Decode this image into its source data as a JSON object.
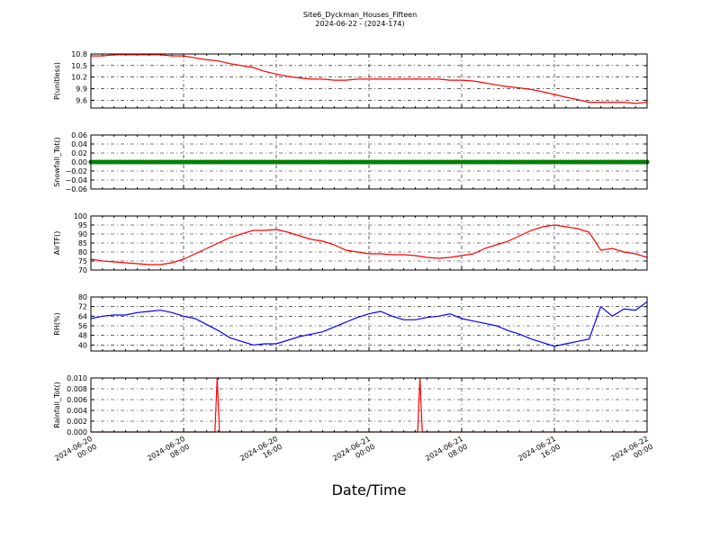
{
  "figure": {
    "title_line1": "Site6_Dyckman_Houses_Fifteen",
    "title_line2": "2024-06-22 - (2024-174)",
    "xlabel": "Date/Time"
  },
  "chart_data": [
    {
      "type": "line",
      "ylabel": "P(unitless)",
      "ylim": [
        9.4,
        10.8
      ],
      "yticks": [
        "10.8",
        "10.5",
        "10.2",
        "9.9",
        "9.6"
      ],
      "ytick_values": [
        10.8,
        10.5,
        10.2,
        9.9,
        9.6
      ],
      "color": "#ff0000",
      "grid": true,
      "x": [
        0,
        3,
        6,
        9,
        12,
        15,
        18,
        21,
        24,
        27,
        30,
        33,
        36,
        39,
        42,
        45,
        48
      ],
      "values": [
        10.75,
        10.78,
        10.78,
        10.75,
        10.65,
        10.5,
        10.25,
        10.15,
        10.12,
        10.15,
        10.15,
        10.15,
        10.12,
        10.05,
        9.9,
        9.75,
        9.55
      ],
      "series": [
        {
          "x": [
            0,
            1,
            2,
            3,
            4,
            5,
            6,
            7,
            8,
            9,
            10,
            11,
            12,
            13,
            14,
            15,
            16,
            17,
            18,
            19,
            20,
            21,
            22,
            23,
            24,
            25,
            26,
            27,
            28,
            29,
            30,
            31,
            32,
            33,
            34,
            35,
            36,
            37,
            38,
            39,
            40,
            41,
            42,
            43,
            44,
            45,
            46,
            47,
            48
          ],
          "y": [
            10.75,
            10.75,
            10.78,
            10.78,
            10.78,
            10.78,
            10.78,
            10.75,
            10.75,
            10.7,
            10.65,
            10.62,
            10.55,
            10.5,
            10.45,
            10.35,
            10.28,
            10.22,
            10.18,
            10.15,
            10.15,
            10.12,
            10.12,
            10.15,
            10.15,
            10.15,
            10.15,
            10.15,
            10.15,
            10.15,
            10.15,
            10.12,
            10.12,
            10.1,
            10.05,
            10.0,
            9.95,
            9.92,
            9.88,
            9.82,
            9.75,
            9.68,
            9.62,
            9.55,
            9.55,
            9.55,
            9.55,
            9.52,
            9.55
          ]
        }
      ]
    },
    {
      "type": "scatter",
      "ylabel": "Snowfall_Tot()",
      "ylim": [
        -0.06,
        0.06
      ],
      "yticks": [
        "0.06",
        "0.04",
        "0.02",
        "0.00",
        "−0.02",
        "−0.04",
        "−0.06"
      ],
      "ytick_values": [
        0.06,
        0.04,
        0.02,
        0.0,
        -0.02,
        -0.04,
        -0.06
      ],
      "color": "#008000",
      "grid": true,
      "x_range": [
        0,
        48
      ],
      "constant_value": 0.0,
      "series": []
    },
    {
      "type": "line",
      "ylabel": "AirTF()",
      "ylim": [
        70,
        100
      ],
      "yticks": [
        "100",
        "95",
        "90",
        "85",
        "80",
        "75",
        "70"
      ],
      "ytick_values": [
        100,
        95,
        90,
        85,
        80,
        75,
        70
      ],
      "color": "#ff0000",
      "grid": true,
      "series": [
        {
          "x": [
            0,
            1,
            2,
            3,
            4,
            5,
            6,
            7,
            8,
            9,
            10,
            11,
            12,
            13,
            14,
            15,
            16,
            17,
            18,
            19,
            20,
            21,
            22,
            23,
            24,
            25,
            26,
            27,
            28,
            29,
            30,
            31,
            32,
            33,
            34,
            35,
            36,
            37,
            38,
            39,
            40,
            41,
            42,
            43,
            44,
            45,
            46,
            47,
            48
          ],
          "y": [
            76,
            75,
            74.5,
            74,
            73.5,
            73,
            73,
            74,
            76,
            79,
            82,
            85,
            88,
            90,
            92,
            92,
            92.5,
            91,
            89,
            87,
            86,
            84,
            81,
            80,
            79,
            79,
            78.5,
            78.5,
            78,
            77,
            76.5,
            77,
            78,
            79,
            82,
            84,
            86,
            89,
            92,
            94,
            95,
            94,
            93,
            91,
            81,
            82,
            80,
            79,
            77
          ]
        }
      ]
    },
    {
      "type": "line",
      "ylabel": "RH(%)",
      "ylim": [
        35,
        80
      ],
      "yticks": [
        "80",
        "72",
        "64",
        "56",
        "48",
        "40"
      ],
      "ytick_values": [
        80,
        72,
        64,
        56,
        48,
        40
      ],
      "color": "#0000ff",
      "grid": true,
      "series": [
        {
          "x": [
            0,
            1,
            2,
            3,
            4,
            5,
            6,
            7,
            8,
            9,
            10,
            11,
            12,
            13,
            14,
            15,
            16,
            17,
            18,
            19,
            20,
            21,
            22,
            23,
            24,
            25,
            26,
            27,
            28,
            29,
            30,
            31,
            32,
            33,
            34,
            35,
            36,
            37,
            38,
            39,
            40,
            41,
            42,
            43,
            44,
            45,
            46,
            47,
            48
          ],
          "y": [
            62,
            64,
            65,
            65,
            67,
            68,
            69,
            67,
            64,
            62,
            57,
            52,
            46,
            43,
            40,
            41,
            41,
            44,
            47,
            49,
            51,
            55,
            59,
            63,
            66,
            68,
            64,
            61,
            61,
            63,
            64,
            66,
            62,
            60,
            58,
            56,
            52,
            49,
            45,
            42,
            39,
            41,
            43,
            45,
            72,
            64,
            70,
            69,
            76
          ]
        }
      ]
    },
    {
      "type": "line",
      "ylabel": "Rainfall_Tot()",
      "ylim": [
        0.0,
        0.01
      ],
      "yticks": [
        "0.010",
        "0.008",
        "0.006",
        "0.004",
        "0.002",
        "0.000"
      ],
      "ytick_values": [
        0.01,
        0.008,
        0.006,
        0.004,
        0.002,
        0.0
      ],
      "color": "#ff0000",
      "grid": true,
      "series": [
        {
          "x": [
            0,
            10.7,
            10.9,
            11.1,
            28.2,
            28.4,
            28.6,
            48
          ],
          "y": [
            0,
            0,
            0.01,
            0,
            0,
            0.01,
            0,
            0
          ]
        }
      ]
    }
  ],
  "x_ticks": [
    {
      "line1": "2024-06-20",
      "line2": "00:00",
      "value": 0
    },
    {
      "line1": "2024-06-20",
      "line2": "08:00",
      "value": 8
    },
    {
      "line1": "2024-06-20",
      "line2": "16:00",
      "value": 16
    },
    {
      "line1": "2024-06-21",
      "line2": "00:00",
      "value": 24
    },
    {
      "line1": "2024-06-21",
      "line2": "08:00",
      "value": 32
    },
    {
      "line1": "2024-06-21",
      "line2": "16:00",
      "value": 40
    },
    {
      "line1": "2024-06-22",
      "line2": "00:00",
      "value": 48
    }
  ]
}
